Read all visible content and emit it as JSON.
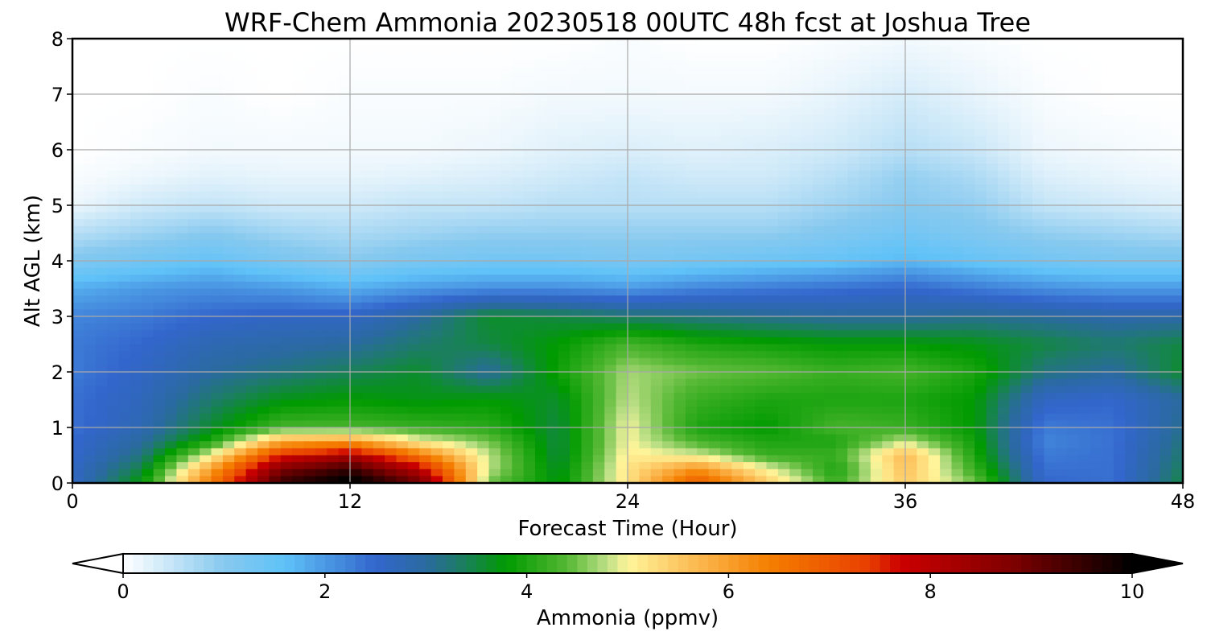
{
  "chart_data": {
    "type": "heatmap",
    "title": "WRF-Chem Ammonia  20230518 00UTC 48h fcst at Joshua Tree",
    "xlabel": "Forecast Time (Hour)",
    "ylabel": "Alt AGL (km)",
    "xlim": [
      0,
      48
    ],
    "ylim": [
      0,
      8
    ],
    "xticks": [
      "0",
      "12",
      "24",
      "36",
      "48"
    ],
    "yticks": [
      "0",
      "1",
      "2",
      "3",
      "4",
      "5",
      "6",
      "7",
      "8"
    ],
    "grid": true,
    "x_hours": [
      0,
      3,
      6,
      9,
      12,
      15,
      18,
      21,
      24,
      27,
      30,
      33,
      36,
      39,
      42,
      45,
      48
    ],
    "y_km": [
      0,
      0.25,
      0.5,
      0.75,
      1,
      1.5,
      2,
      2.5,
      3,
      3.5,
      4,
      4.5,
      5,
      5.5,
      6,
      7,
      8
    ],
    "values": [
      [
        2.6,
        3.8,
        6.5,
        9.5,
        10.2,
        9.0,
        4.5,
        3.7,
        5.2,
        7.0,
        5.5,
        4.2,
        5.5,
        4.5,
        2.5,
        2.4,
        3.5
      ],
      [
        2.6,
        3.5,
        6.0,
        8.8,
        9.5,
        8.0,
        4.8,
        3.6,
        5.2,
        6.2,
        5.0,
        4.0,
        5.6,
        4.2,
        2.4,
        2.4,
        3.4
      ],
      [
        2.5,
        3.2,
        5.0,
        7.5,
        8.2,
        6.5,
        4.8,
        3.5,
        5.1,
        4.9,
        4.2,
        4.2,
        5.7,
        4.0,
        2.3,
        2.4,
        3.3
      ],
      [
        2.5,
        3.0,
        4.0,
        5.8,
        6.0,
        5.0,
        4.5,
        3.5,
        5.0,
        4.3,
        4.0,
        4.0,
        4.8,
        3.9,
        2.2,
        2.4,
        3.2
      ],
      [
        2.4,
        2.8,
        3.6,
        4.3,
        4.3,
        4.2,
        4.1,
        3.5,
        5.0,
        4.0,
        3.8,
        4.3,
        4.2,
        3.8,
        2.3,
        2.4,
        3.1
      ],
      [
        2.4,
        2.7,
        3.3,
        3.7,
        3.8,
        3.7,
        3.8,
        3.6,
        4.8,
        4.2,
        4.0,
        4.0,
        4.0,
        3.8,
        2.6,
        2.5,
        3.0
      ],
      [
        2.3,
        2.6,
        3.0,
        3.2,
        3.4,
        3.6,
        3.0,
        3.9,
        4.7,
        4.5,
        4.4,
        4.2,
        4.3,
        4.0,
        3.2,
        3.0,
        3.6
      ],
      [
        2.3,
        2.5,
        2.8,
        2.9,
        3.0,
        3.3,
        3.5,
        3.8,
        4.3,
        4.0,
        3.9,
        3.8,
        3.8,
        3.7,
        3.5,
        3.3,
        3.5
      ],
      [
        2.2,
        2.3,
        2.5,
        2.6,
        2.6,
        3.0,
        3.6,
        3.5,
        3.3,
        3.2,
        3.1,
        3.0,
        3.0,
        3.1,
        3.0,
        2.9,
        2.9
      ],
      [
        1.8,
        2.0,
        2.1,
        2.0,
        1.8,
        2.0,
        2.1,
        2.1,
        2.0,
        2.2,
        2.3,
        2.4,
        2.5,
        2.3,
        2.1,
        2.0,
        2.0
      ],
      [
        1.1,
        1.3,
        1.5,
        1.2,
        1.0,
        1.2,
        1.3,
        1.3,
        1.2,
        1.3,
        1.4,
        1.5,
        1.7,
        1.5,
        1.3,
        1.2,
        1.2
      ],
      [
        0.6,
        0.8,
        1.0,
        0.8,
        0.7,
        0.8,
        0.9,
        0.9,
        0.9,
        0.9,
        0.9,
        1.1,
        1.3,
        1.1,
        0.9,
        0.8,
        0.7
      ],
      [
        0.15,
        0.4,
        0.5,
        0.4,
        0.4,
        0.5,
        0.5,
        0.6,
        0.6,
        0.6,
        0.6,
        0.8,
        1.0,
        0.9,
        0.5,
        0.4,
        0.3
      ],
      [
        0.05,
        0.15,
        0.25,
        0.2,
        0.2,
        0.25,
        0.3,
        0.4,
        0.5,
        0.4,
        0.4,
        0.6,
        0.9,
        0.7,
        0.3,
        0.2,
        0.15
      ],
      [
        0.0,
        0.05,
        0.1,
        0.1,
        0.1,
        0.1,
        0.15,
        0.25,
        0.3,
        0.25,
        0.3,
        0.4,
        0.6,
        0.45,
        0.15,
        0.1,
        0.05
      ],
      [
        0.0,
        0.0,
        0.05,
        0.0,
        0.05,
        0.05,
        0.05,
        0.1,
        0.1,
        0.1,
        0.1,
        0.2,
        0.35,
        0.2,
        0.05,
        0.0,
        0.0
      ],
      [
        0.0,
        0.0,
        0.0,
        0.0,
        0.0,
        0.0,
        0.0,
        0.0,
        0.05,
        0.0,
        0.0,
        0.05,
        0.1,
        0.05,
        0.0,
        0.0,
        0.0
      ]
    ],
    "colorbar": {
      "label": "Ammonia  (ppmv)",
      "min": 0,
      "max": 10,
      "ticks": [
        "0",
        "2",
        "4",
        "6",
        "8",
        "10"
      ],
      "extend": "both",
      "colors": [
        {
          "v": 0.0,
          "c": "#ffffff"
        },
        {
          "v": 1.0,
          "c": "#87c9ef"
        },
        {
          "v": 1.6,
          "c": "#5fc2f8"
        },
        {
          "v": 2.5,
          "c": "#3366cc"
        },
        {
          "v": 3.0,
          "c": "#2a6aa0"
        },
        {
          "v": 3.3,
          "c": "#1f7a6e"
        },
        {
          "v": 3.8,
          "c": "#009a00"
        },
        {
          "v": 4.4,
          "c": "#55b834"
        },
        {
          "v": 4.8,
          "c": "#bfe088"
        },
        {
          "v": 5.0,
          "c": "#fff59a"
        },
        {
          "v": 5.6,
          "c": "#fcc05a"
        },
        {
          "v": 6.4,
          "c": "#f57f00"
        },
        {
          "v": 7.4,
          "c": "#e83e00"
        },
        {
          "v": 7.7,
          "c": "#cc0000"
        },
        {
          "v": 8.8,
          "c": "#800000"
        },
        {
          "v": 10.0,
          "c": "#000000"
        }
      ]
    }
  }
}
